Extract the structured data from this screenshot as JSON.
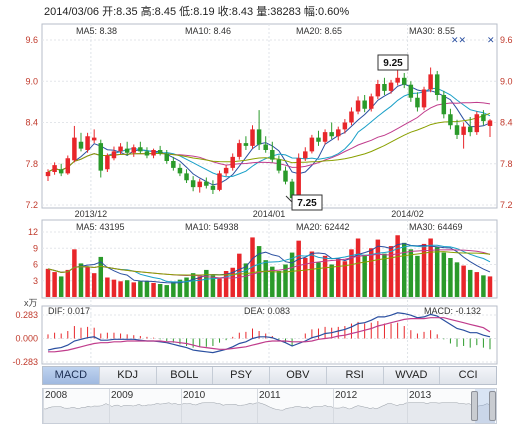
{
  "header": {
    "text": "2014/03/06 开:8.35 高:8.45 低:8.19 收:8.43 量:38283 幅:0.60%"
  },
  "price_panel": {
    "ma_labels": [
      {
        "text": "MA5: 8.38",
        "color": "#2a4fa0"
      },
      {
        "text": "MA10: 8.46",
        "color": "#1aa0c8"
      },
      {
        "text": "MA20: 8.65",
        "color": "#c03c8c"
      },
      {
        "text": "MA30: 8.55",
        "color": "#8aa000"
      }
    ],
    "y_ticks": [
      "9.6",
      "9.0",
      "8.4",
      "7.8",
      "7.2"
    ],
    "x_ticks": [
      "2013/12",
      "2014/01",
      "2014/02"
    ],
    "high_callout": "9.25",
    "low_callout": "7.25"
  },
  "volume_panel": {
    "ma_labels": [
      {
        "text": "MA5: 43195",
        "color": "#2a4fa0"
      },
      {
        "text": "MA10: 54938",
        "color": "#1aa0c8"
      },
      {
        "text": "MA20: 62442",
        "color": "#c03c8c"
      },
      {
        "text": "MA30: 64469",
        "color": "#8aa000"
      }
    ],
    "y_ticks": [
      "12",
      "9",
      "6",
      "3"
    ],
    "unit": "x万"
  },
  "macd_panel": {
    "labels": [
      {
        "text": "DIF: 0.017",
        "color": "#2a4fa0"
      },
      {
        "text": "DEA: 0.083",
        "color": "#c03c8c"
      },
      {
        "text": "MACD: -0.132",
        "color": "#222222"
      }
    ],
    "y_ticks": [
      "0.283",
      "0.000",
      "-0.283"
    ]
  },
  "tabs": [
    "MACD",
    "KDJ",
    "BOLL",
    "PSY",
    "OBV",
    "RSI",
    "WVAD",
    "CCI"
  ],
  "active_tab": "MACD",
  "navigator": {
    "years": [
      "2008",
      "2009",
      "2010",
      "2011",
      "2012",
      "2013"
    ]
  },
  "chart_data": {
    "type": "candlestick",
    "title": "2014/03/06 开:8.35 高:8.45 低:8.19 收:8.43 量:38283 幅:0.60%",
    "price_ylim": [
      7.2,
      9.6
    ],
    "volume_ylim": [
      0,
      12
    ],
    "macd_ylim": [
      -0.283,
      0.283
    ],
    "x_tick_labels": [
      "2013/12",
      "2014/01",
      "2014/02"
    ],
    "up_color": "#e8262a",
    "down_color": "#2a9a2a",
    "candles": [
      {
        "o": 7.62,
        "h": 7.72,
        "l": 7.55,
        "c": 7.68
      },
      {
        "o": 7.68,
        "h": 7.82,
        "l": 7.64,
        "c": 7.78
      },
      {
        "o": 7.72,
        "h": 7.8,
        "l": 7.62,
        "c": 7.66
      },
      {
        "o": 7.66,
        "h": 7.92,
        "l": 7.64,
        "c": 7.88
      },
      {
        "o": 7.85,
        "h": 8.35,
        "l": 7.82,
        "c": 8.18
      },
      {
        "o": 8.12,
        "h": 8.25,
        "l": 7.98,
        "c": 8.02
      },
      {
        "o": 8.0,
        "h": 8.25,
        "l": 7.96,
        "c": 8.2
      },
      {
        "o": 8.14,
        "h": 8.3,
        "l": 8.1,
        "c": 8.18
      },
      {
        "o": 8.1,
        "h": 8.15,
        "l": 7.6,
        "c": 7.7
      },
      {
        "o": 7.72,
        "h": 7.95,
        "l": 7.68,
        "c": 7.92
      },
      {
        "o": 7.88,
        "h": 8.05,
        "l": 7.85,
        "c": 7.98
      },
      {
        "o": 7.98,
        "h": 8.1,
        "l": 7.94,
        "c": 8.05
      },
      {
        "o": 8.02,
        "h": 8.12,
        "l": 7.92,
        "c": 7.96
      },
      {
        "o": 7.96,
        "h": 8.08,
        "l": 7.9,
        "c": 8.04
      },
      {
        "o": 8.04,
        "h": 8.12,
        "l": 7.95,
        "c": 7.98
      },
      {
        "o": 7.98,
        "h": 8.04,
        "l": 7.88,
        "c": 7.92
      },
      {
        "o": 7.92,
        "h": 8.02,
        "l": 7.88,
        "c": 8.0
      },
      {
        "o": 8.0,
        "h": 8.06,
        "l": 7.92,
        "c": 7.95
      },
      {
        "o": 7.95,
        "h": 8.0,
        "l": 7.8,
        "c": 7.84
      },
      {
        "o": 7.84,
        "h": 7.9,
        "l": 7.7,
        "c": 7.74
      },
      {
        "o": 7.74,
        "h": 7.8,
        "l": 7.62,
        "c": 7.66
      },
      {
        "o": 7.66,
        "h": 7.72,
        "l": 7.52,
        "c": 7.56
      },
      {
        "o": 7.56,
        "h": 7.62,
        "l": 7.4,
        "c": 7.46
      },
      {
        "o": 7.46,
        "h": 7.58,
        "l": 7.38,
        "c": 7.54
      },
      {
        "o": 7.54,
        "h": 7.6,
        "l": 7.44,
        "c": 7.48
      },
      {
        "o": 7.48,
        "h": 7.56,
        "l": 7.36,
        "c": 7.42
      },
      {
        "o": 7.42,
        "h": 7.7,
        "l": 7.4,
        "c": 7.66
      },
      {
        "o": 7.66,
        "h": 7.78,
        "l": 7.62,
        "c": 7.74
      },
      {
        "o": 7.74,
        "h": 7.95,
        "l": 7.7,
        "c": 7.9
      },
      {
        "o": 7.9,
        "h": 8.15,
        "l": 7.86,
        "c": 8.1
      },
      {
        "o": 8.1,
        "h": 8.2,
        "l": 8.0,
        "c": 8.06
      },
      {
        "o": 8.06,
        "h": 8.36,
        "l": 8.02,
        "c": 8.3
      },
      {
        "o": 8.3,
        "h": 8.58,
        "l": 8.0,
        "c": 8.08
      },
      {
        "o": 8.08,
        "h": 8.2,
        "l": 7.96,
        "c": 8.0
      },
      {
        "o": 8.0,
        "h": 8.12,
        "l": 7.82,
        "c": 7.86
      },
      {
        "o": 7.86,
        "h": 7.92,
        "l": 7.66,
        "c": 7.7
      },
      {
        "o": 7.7,
        "h": 7.76,
        "l": 7.5,
        "c": 7.54
      },
      {
        "o": 7.54,
        "h": 7.58,
        "l": 7.25,
        "c": 7.3
      },
      {
        "o": 7.3,
        "h": 7.95,
        "l": 7.28,
        "c": 7.88
      },
      {
        "o": 7.88,
        "h": 8.04,
        "l": 7.84,
        "c": 7.98
      },
      {
        "o": 7.98,
        "h": 8.22,
        "l": 7.95,
        "c": 8.18
      },
      {
        "o": 8.18,
        "h": 8.28,
        "l": 8.06,
        "c": 8.12
      },
      {
        "o": 8.12,
        "h": 8.3,
        "l": 8.08,
        "c": 8.26
      },
      {
        "o": 8.26,
        "h": 8.4,
        "l": 8.16,
        "c": 8.2
      },
      {
        "o": 8.2,
        "h": 8.34,
        "l": 8.14,
        "c": 8.3
      },
      {
        "o": 8.3,
        "h": 8.45,
        "l": 8.24,
        "c": 8.4
      },
      {
        "o": 8.4,
        "h": 8.62,
        "l": 8.36,
        "c": 8.56
      },
      {
        "o": 8.56,
        "h": 8.78,
        "l": 8.52,
        "c": 8.72
      },
      {
        "o": 8.72,
        "h": 8.8,
        "l": 8.55,
        "c": 8.6
      },
      {
        "o": 8.6,
        "h": 8.82,
        "l": 8.56,
        "c": 8.78
      },
      {
        "o": 8.78,
        "h": 9.02,
        "l": 8.74,
        "c": 8.96
      },
      {
        "o": 8.96,
        "h": 9.05,
        "l": 8.8,
        "c": 8.86
      },
      {
        "o": 8.86,
        "h": 9.02,
        "l": 8.82,
        "c": 8.98
      },
      {
        "o": 8.98,
        "h": 9.25,
        "l": 8.94,
        "c": 9.05
      },
      {
        "o": 9.05,
        "h": 9.12,
        "l": 8.9,
        "c": 8.95
      },
      {
        "o": 8.95,
        "h": 9.0,
        "l": 8.7,
        "c": 8.76
      },
      {
        "o": 8.76,
        "h": 8.84,
        "l": 8.56,
        "c": 8.62
      },
      {
        "o": 8.62,
        "h": 8.92,
        "l": 8.58,
        "c": 8.88
      },
      {
        "o": 8.88,
        "h": 9.2,
        "l": 8.84,
        "c": 9.1
      },
      {
        "o": 9.1,
        "h": 9.15,
        "l": 8.72,
        "c": 8.8
      },
      {
        "o": 8.8,
        "h": 8.86,
        "l": 8.46,
        "c": 8.52
      },
      {
        "o": 8.52,
        "h": 8.6,
        "l": 8.3,
        "c": 8.36
      },
      {
        "o": 8.36,
        "h": 8.44,
        "l": 8.16,
        "c": 8.22
      },
      {
        "o": 8.22,
        "h": 8.4,
        "l": 8.02,
        "c": 8.34
      },
      {
        "o": 8.34,
        "h": 8.48,
        "l": 8.2,
        "c": 8.26
      },
      {
        "o": 8.26,
        "h": 8.56,
        "l": 8.22,
        "c": 8.52
      },
      {
        "o": 8.52,
        "h": 8.58,
        "l": 8.36,
        "c": 8.42
      },
      {
        "o": 8.35,
        "h": 8.45,
        "l": 8.19,
        "c": 8.43
      }
    ],
    "volume_values": [
      5.2,
      4.6,
      3.8,
      5.0,
      8.8,
      6.2,
      5.6,
      4.4,
      7.4,
      3.6,
      3.2,
      2.9,
      3.1,
      2.7,
      2.9,
      3.0,
      2.6,
      2.4,
      2.2,
      2.8,
      3.2,
      3.6,
      4.4,
      3.8,
      5.0,
      4.0,
      3.4,
      4.8,
      5.4,
      8.0,
      6.2,
      11.0,
      9.4,
      6.8,
      5.6,
      4.8,
      6.0,
      8.2,
      10.4,
      7.2,
      8.4,
      6.4,
      7.6,
      6.0,
      7.0,
      6.6,
      8.8,
      10.8,
      7.8,
      9.0,
      10.6,
      8.0,
      9.4,
      11.4,
      10.0,
      8.8,
      7.6,
      9.8,
      10.8,
      9.2,
      8.2,
      7.2,
      6.4,
      5.8,
      5.0,
      4.6,
      4.0,
      3.8
    ],
    "macd_bars": [
      0.05,
      0.07,
      0.06,
      0.09,
      0.15,
      0.13,
      0.14,
      0.13,
      0.06,
      0.07,
      0.07,
      0.06,
      0.05,
      0.04,
      0.03,
      0.02,
      0.01,
      -0.01,
      -0.03,
      -0.05,
      -0.07,
      -0.09,
      -0.11,
      -0.1,
      -0.1,
      -0.09,
      -0.05,
      -0.02,
      0.02,
      0.07,
      0.08,
      0.12,
      0.09,
      0.06,
      0.03,
      -0.01,
      -0.05,
      -0.09,
      0.0,
      0.06,
      0.11,
      0.12,
      0.14,
      0.13,
      0.14,
      0.15,
      0.18,
      0.2,
      0.18,
      0.19,
      0.21,
      0.18,
      0.18,
      0.19,
      0.15,
      0.1,
      0.06,
      0.08,
      0.1,
      0.05,
      -0.01,
      -0.06,
      -0.1,
      -0.09,
      -0.11,
      -0.08,
      -0.11,
      -0.13
    ],
    "dif": [
      -0.14,
      -0.12,
      -0.11,
      -0.08,
      -0.03,
      -0.01,
      0.01,
      0.02,
      -0.02,
      -0.02,
      -0.01,
      -0.01,
      -0.01,
      -0.01,
      -0.02,
      -0.03,
      -0.03,
      -0.04,
      -0.05,
      -0.07,
      -0.09,
      -0.11,
      -0.14,
      -0.15,
      -0.16,
      -0.17,
      -0.15,
      -0.13,
      -0.1,
      -0.06,
      -0.04,
      0.0,
      0.02,
      0.02,
      0.01,
      -0.02,
      -0.05,
      -0.09,
      -0.06,
      -0.03,
      0.01,
      0.03,
      0.06,
      0.07,
      0.09,
      0.11,
      0.14,
      0.18,
      0.19,
      0.22,
      0.26,
      0.26,
      0.28,
      0.31,
      0.3,
      0.28,
      0.25,
      0.26,
      0.29,
      0.27,
      0.22,
      0.17,
      0.12,
      0.1,
      0.07,
      0.07,
      0.04,
      0.02
    ],
    "dea": [
      -0.16,
      -0.16,
      -0.15,
      -0.14,
      -0.12,
      -0.1,
      -0.08,
      -0.06,
      -0.05,
      -0.05,
      -0.04,
      -0.04,
      -0.03,
      -0.03,
      -0.03,
      -0.03,
      -0.03,
      -0.03,
      -0.04,
      -0.04,
      -0.05,
      -0.06,
      -0.08,
      -0.1,
      -0.11,
      -0.12,
      -0.13,
      -0.13,
      -0.12,
      -0.11,
      -0.1,
      -0.08,
      -0.06,
      -0.04,
      -0.03,
      -0.03,
      -0.03,
      -0.04,
      -0.04,
      -0.04,
      -0.03,
      -0.01,
      0.0,
      0.01,
      0.03,
      0.04,
      0.06,
      0.08,
      0.1,
      0.12,
      0.15,
      0.17,
      0.19,
      0.21,
      0.23,
      0.24,
      0.24,
      0.24,
      0.25,
      0.25,
      0.25,
      0.23,
      0.21,
      0.19,
      0.17,
      0.15,
      0.13,
      0.08
    ]
  }
}
